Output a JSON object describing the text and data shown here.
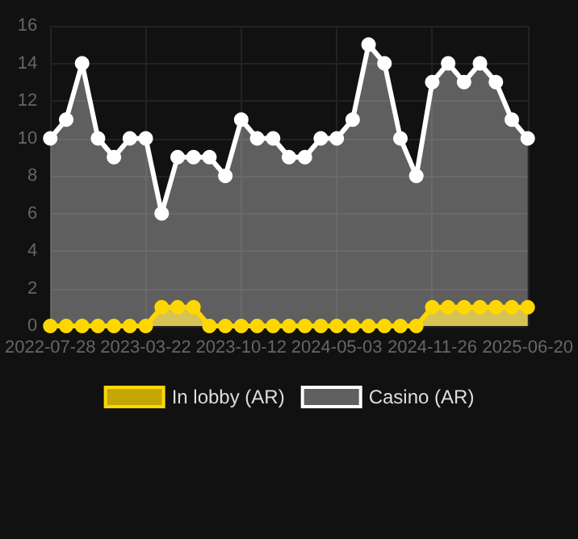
{
  "chart_data": {
    "type": "area",
    "categories": [
      "2022-07-28",
      null,
      null,
      null,
      null,
      null,
      "2023-03-22",
      null,
      null,
      null,
      null,
      null,
      "2023-10-12",
      null,
      null,
      null,
      null,
      null,
      "2024-05-03",
      null,
      null,
      null,
      null,
      null,
      "2024-11-26",
      null,
      null,
      null,
      null,
      null,
      "2025-06-20"
    ],
    "series": [
      {
        "name": "In lobby (AR)",
        "color": "#ffd700",
        "values": [
          0,
          0,
          0,
          0,
          0,
          0,
          0,
          1,
          1,
          1,
          0,
          0,
          0,
          0,
          0,
          0,
          0,
          0,
          0,
          0,
          0,
          0,
          0,
          0,
          1,
          1,
          1,
          1,
          1,
          1,
          1
        ]
      },
      {
        "name": "Casino (AR)",
        "color": "#ffffff",
        "values": [
          10,
          11,
          14,
          10,
          9,
          10,
          10,
          6,
          9,
          9,
          9,
          8,
          11,
          10,
          10,
          9,
          9,
          10,
          10,
          11,
          15,
          14,
          10,
          8,
          13,
          14,
          13,
          14,
          13,
          11,
          10
        ]
      }
    ],
    "ylim": [
      0,
      16
    ],
    "yticks": [
      0,
      2,
      4,
      6,
      8,
      10,
      12,
      14,
      16
    ],
    "grid": true,
    "legend": "bottom",
    "marker": "circle"
  }
}
